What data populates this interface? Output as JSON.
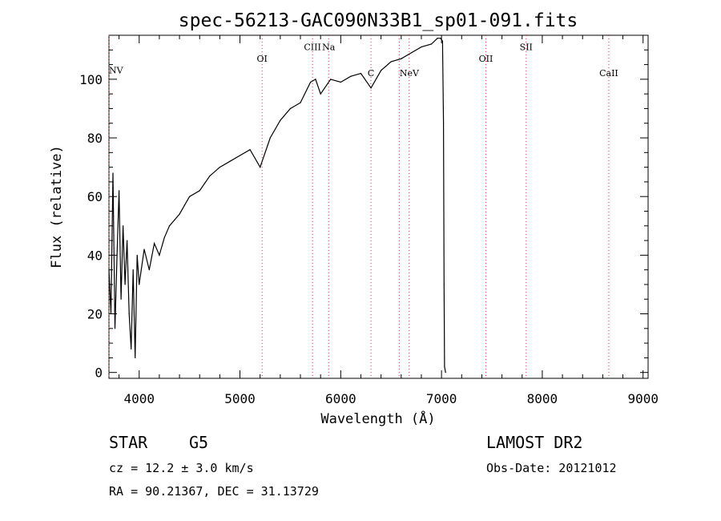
{
  "chart_data": {
    "type": "line",
    "title": "spec-56213-GAC090N33B1_sp01-091.fits",
    "xlabel": "Wavelength (Å)",
    "ylabel": "Flux (relative)",
    "xlim": [
      3700,
      9050
    ],
    "ylim": [
      -2,
      115
    ],
    "xticks": [
      4000,
      5000,
      6000,
      7000,
      8000,
      9000
    ],
    "yticks": [
      0,
      20,
      40,
      60,
      80,
      100
    ],
    "grid": false,
    "series": [
      {
        "x": [
          3700,
          3720,
          3740,
          3760,
          3780,
          3800,
          3820,
          3840,
          3860,
          3880,
          3900,
          3920,
          3940,
          3960,
          3980,
          4000,
          4050,
          4100,
          4150,
          4200,
          4250,
          4300,
          4350,
          4400,
          4450,
          4500,
          4600,
          4700,
          4800,
          4900,
          5000,
          5100,
          5200,
          5300,
          5400,
          5500,
          5600,
          5700,
          5750,
          5800,
          5900,
          6000,
          6100,
          6200,
          6300,
          6400,
          6500,
          6600,
          6700,
          6800,
          6900,
          6960,
          6990,
          7010,
          7020,
          7025,
          7030,
          7040
        ],
        "y": [
          35,
          20,
          68,
          15,
          40,
          62,
          25,
          50,
          30,
          45,
          20,
          8,
          35,
          5,
          40,
          30,
          42,
          35,
          44,
          40,
          46,
          50,
          52,
          54,
          57,
          60,
          62,
          67,
          70,
          72,
          74,
          76,
          70,
          80,
          86,
          90,
          92,
          99,
          100,
          95,
          100,
          99,
          101,
          102,
          97,
          103,
          106,
          107,
          109,
          111,
          112,
          114,
          114,
          113,
          85,
          30,
          2,
          0
        ]
      }
    ],
    "lines": [
      {
        "x": 3700,
        "label": "NV",
        "label_y": 102
      },
      {
        "x": 5220,
        "label": "OI",
        "label_y": 106
      },
      {
        "x": 5720,
        "label": "CIII",
        "label_y": 110
      },
      {
        "x": 5880,
        "label": "Na",
        "label_y": 110
      },
      {
        "x": 6300,
        "label": "C",
        "label_y": 101
      },
      {
        "x": 6580,
        "label": "",
        "label_y": 0
      },
      {
        "x": 6680,
        "label": "NeV",
        "label_y": 101
      },
      {
        "x": 7440,
        "label": "OII",
        "label_y": 106
      },
      {
        "x": 7840,
        "label": "SII",
        "label_y": 110
      },
      {
        "x": 8660,
        "label": "CaII",
        "label_y": 101
      }
    ]
  },
  "info": {
    "object_class": "STAR",
    "subclass": "G5",
    "survey": "LAMOST DR2",
    "cz_line": "cz = 12.2 ± 3.0 km/s",
    "obs_date": "Obs-Date: 20121012",
    "coords": "RA =  90.21367, DEC =  31.13729"
  }
}
